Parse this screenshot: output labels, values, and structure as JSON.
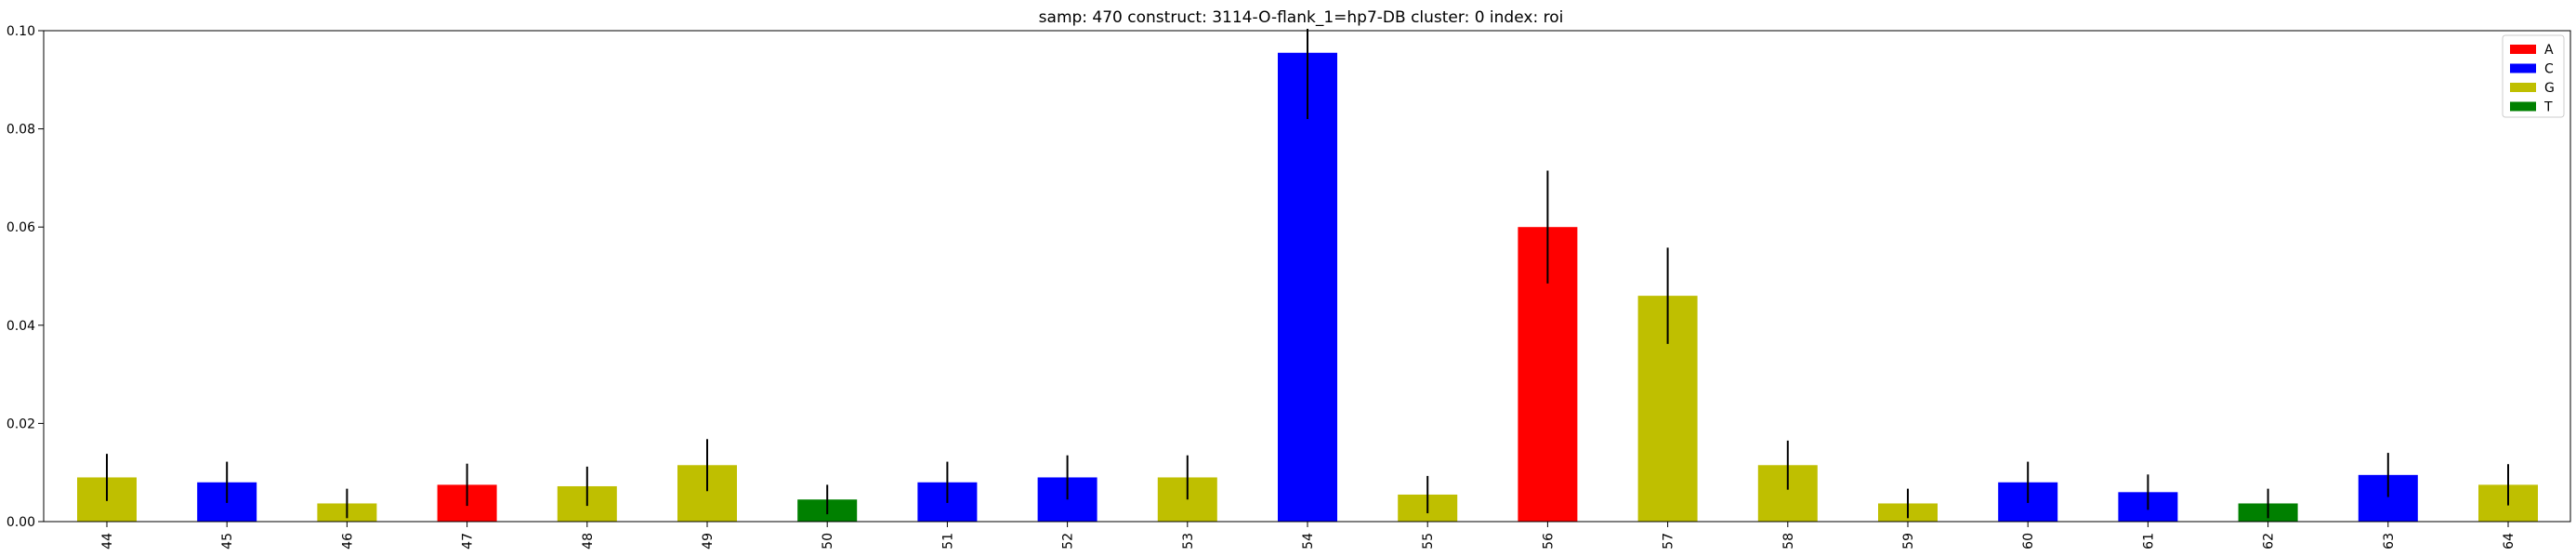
{
  "chart_data": {
    "type": "bar",
    "title": "samp: 470  construct: 3114-O-flank_1=hp7-DB  cluster: 0  index: roi",
    "xlabel": "",
    "ylabel": "",
    "ylim": [
      0,
      0.1
    ],
    "yticks": [
      "0.00",
      "0.02",
      "0.04",
      "0.06",
      "0.08",
      "0.10"
    ],
    "grid": false,
    "legend_position": "top-right",
    "legend": [
      {
        "label": "A",
        "color": "#ff0000"
      },
      {
        "label": "C",
        "color": "#0000ff"
      },
      {
        "label": "G",
        "color": "#bfbf00"
      },
      {
        "label": "T",
        "color": "#008000"
      }
    ],
    "categories": [
      "44",
      "45",
      "46",
      "47",
      "48",
      "49",
      "50",
      "51",
      "52",
      "53",
      "54",
      "55",
      "56",
      "57",
      "58",
      "59",
      "60",
      "61",
      "62",
      "63",
      "64"
    ],
    "bases": [
      "G",
      "C",
      "G",
      "A",
      "G",
      "G",
      "T",
      "C",
      "C",
      "G",
      "C",
      "G",
      "A",
      "G",
      "G",
      "G",
      "C",
      "C",
      "T",
      "C",
      "G"
    ],
    "values": [
      0.009,
      0.008,
      0.0037,
      0.0075,
      0.0072,
      0.0115,
      0.0045,
      0.008,
      0.009,
      0.009,
      0.0955,
      0.0055,
      0.06,
      0.046,
      0.0115,
      0.0037,
      0.008,
      0.006,
      0.0037,
      0.0095,
      0.0075
    ],
    "errors": [
      0.0048,
      0.0042,
      0.003,
      0.0043,
      0.004,
      0.0053,
      0.003,
      0.0042,
      0.0045,
      0.0045,
      0.0135,
      0.0038,
      0.0115,
      0.0098,
      0.005,
      0.003,
      0.0042,
      0.0036,
      0.003,
      0.0045,
      0.0042
    ]
  }
}
